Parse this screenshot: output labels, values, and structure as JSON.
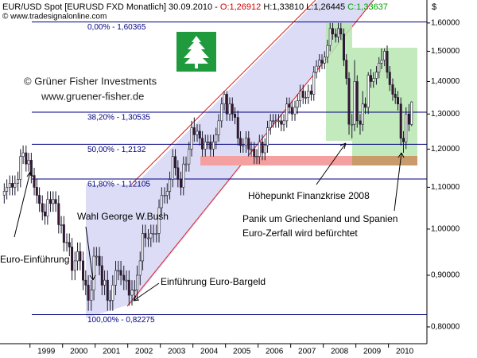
{
  "chart_data": {
    "type": "candlestick",
    "header": {
      "symbol": "EUR/USD Spot [EURUSD FXD Monatlich] 30.09.2010 -",
      "open": "O:1,26912",
      "high": "H:1,33810",
      "low": "L:1,26445",
      "close": "C:1,33637"
    },
    "source": "© www.tradesignalonline.com",
    "currency": "$",
    "copyright": "© Grüner Fisher Investments",
    "website": "www.gruener-fisher.de",
    "annotations": [
      "Höhepunkt Finanzkrise 2008",
      "Panik um Griechenland und Spanien",
      "Euro-Zerfall wird befürchtet",
      "Wahl George W.Bush",
      "Euro-Einführung",
      "Einführung Euro-Bargeld"
    ],
    "up_color": "#ffffff",
    "down_color": "#3b1530",
    "outline_color": "#1a1a2e",
    "log_scale": true,
    "xlim": [
      1998.08,
      2011.18
    ],
    "xticks": [
      {
        "value": 1999,
        "label": "1999"
      },
      {
        "value": 2000,
        "label": "2000"
      },
      {
        "value": 2001,
        "label": "2001"
      },
      {
        "value": 2002,
        "label": "2002"
      },
      {
        "value": 2003,
        "label": "2003"
      },
      {
        "value": 2004,
        "label": "2004"
      },
      {
        "value": 2005,
        "label": "2005"
      },
      {
        "value": 2006,
        "label": "2006"
      },
      {
        "value": 2007,
        "label": "2007"
      },
      {
        "value": 2008,
        "label": "2008"
      },
      {
        "value": 2009,
        "label": "2009"
      },
      {
        "value": 2010,
        "label": "2010"
      }
    ],
    "ylim": [
      0.77,
      1.686
    ],
    "yticks": [
      {
        "value": 0.8,
        "label": "0,80000"
      },
      {
        "value": 0.9,
        "label": "0,90000"
      },
      {
        "value": 1.0,
        "label": "1,00000"
      },
      {
        "value": 1.1,
        "label": "1,10000"
      },
      {
        "value": 1.2,
        "label": "1,20000"
      },
      {
        "value": 1.3,
        "label": "1,30000"
      },
      {
        "value": 1.4,
        "label": "1,40000"
      },
      {
        "value": 1.5,
        "label": "1,50000"
      },
      {
        "value": 1.6,
        "label": "1,60000"
      }
    ],
    "fib_levels": [
      {
        "value": 1.60365,
        "label": "0,00% - 1,60365"
      },
      {
        "value": 1.30535,
        "label": "38,20% - 1,30535"
      },
      {
        "value": 1.2132,
        "label": "50,00% - 1,2132"
      },
      {
        "value": 1.12105,
        "label": "61,80% - 1,12105"
      },
      {
        "value": 0.82275,
        "label": "100,00% - 0,82275"
      }
    ],
    "fib_color": "#000080",
    "x": [
      1998.21,
      1998.29,
      1998.38,
      1998.46,
      1998.54,
      1998.63,
      1998.71,
      1998.79,
      1998.88,
      1998.96,
      1999.04,
      1999.13,
      1999.21,
      1999.29,
      1999.38,
      1999.46,
      1999.54,
      1999.63,
      1999.71,
      1999.79,
      1999.88,
      1999.96,
      2000.04,
      2000.13,
      2000.21,
      2000.29,
      2000.38,
      2000.46,
      2000.54,
      2000.63,
      2000.71,
      2000.79,
      2000.88,
      2000.96,
      2001.04,
      2001.13,
      2001.21,
      2001.29,
      2001.38,
      2001.46,
      2001.54,
      2001.63,
      2001.71,
      2001.79,
      2001.88,
      2001.96,
      2002.04,
      2002.13,
      2002.21,
      2002.29,
      2002.38,
      2002.46,
      2002.54,
      2002.63,
      2002.71,
      2002.79,
      2002.88,
      2002.96,
      2003.04,
      2003.13,
      2003.21,
      2003.29,
      2003.38,
      2003.46,
      2003.54,
      2003.63,
      2003.71,
      2003.79,
      2003.88,
      2003.96,
      2004.04,
      2004.13,
      2004.21,
      2004.29,
      2004.38,
      2004.46,
      2004.54,
      2004.63,
      2004.71,
      2004.79,
      2004.88,
      2004.96,
      2005.04,
      2005.13,
      2005.21,
      2005.29,
      2005.38,
      2005.46,
      2005.54,
      2005.63,
      2005.71,
      2005.79,
      2005.88,
      2005.96,
      2006.04,
      2006.13,
      2006.21,
      2006.29,
      2006.38,
      2006.46,
      2006.54,
      2006.63,
      2006.71,
      2006.79,
      2006.88,
      2006.96,
      2007.04,
      2007.13,
      2007.21,
      2007.29,
      2007.38,
      2007.46,
      2007.54,
      2007.63,
      2007.71,
      2007.79,
      2007.88,
      2007.96,
      2008.04,
      2008.13,
      2008.21,
      2008.29,
      2008.38,
      2008.46,
      2008.54,
      2008.63,
      2008.71,
      2008.79,
      2008.88,
      2008.96,
      2009.04,
      2009.13,
      2009.21,
      2009.29,
      2009.38,
      2009.46,
      2009.54,
      2009.63,
      2009.71,
      2009.79,
      2009.88,
      2009.96,
      2010.04,
      2010.13,
      2010.21,
      2010.29,
      2010.38,
      2010.46,
      2010.54,
      2010.63,
      2010.71
    ],
    "open": [
      1.08,
      1.09,
      1.1,
      1.11,
      1.1,
      1.11,
      1.12,
      1.18,
      1.19,
      1.16,
      1.17,
      1.13,
      1.1,
      1.08,
      1.06,
      1.04,
      1.03,
      1.07,
      1.06,
      1.07,
      1.06,
      1.01,
      1.01,
      0.97,
      0.97,
      0.96,
      0.91,
      0.93,
      0.95,
      0.93,
      0.89,
      0.88,
      0.85,
      0.87,
      0.94,
      0.94,
      0.92,
      0.88,
      0.89,
      0.85,
      0.85,
      0.88,
      0.91,
      0.91,
      0.9,
      0.89,
      0.89,
      0.86,
      0.87,
      0.87,
      0.9,
      0.93,
      0.99,
      0.98,
      0.98,
      0.99,
      0.99,
      0.99,
      1.05,
      1.08,
      1.08,
      1.09,
      1.12,
      1.18,
      1.15,
      1.12,
      1.1,
      1.16,
      1.16,
      1.2,
      1.26,
      1.24,
      1.25,
      1.23,
      1.2,
      1.22,
      1.22,
      1.2,
      1.22,
      1.24,
      1.28,
      1.33,
      1.36,
      1.3,
      1.33,
      1.3,
      1.29,
      1.23,
      1.21,
      1.21,
      1.23,
      1.2,
      1.2,
      1.18,
      1.18,
      1.22,
      1.19,
      1.21,
      1.26,
      1.28,
      1.28,
      1.28,
      1.28,
      1.27,
      1.28,
      1.33,
      1.32,
      1.3,
      1.32,
      1.34,
      1.37,
      1.35,
      1.35,
      1.37,
      1.36,
      1.43,
      1.45,
      1.47,
      1.46,
      1.48,
      1.52,
      1.58,
      1.56,
      1.55,
      1.58,
      1.56,
      1.47,
      1.41,
      1.27,
      1.27,
      1.4,
      1.28,
      1.27,
      1.33,
      1.32,
      1.42,
      1.4,
      1.41,
      1.43,
      1.46,
      1.47,
      1.5,
      1.43,
      1.39,
      1.36,
      1.35,
      1.33,
      1.23,
      1.22,
      1.3,
      1.26912
    ],
    "high": [
      1.11,
      1.12,
      1.13,
      1.13,
      1.13,
      1.14,
      1.2,
      1.21,
      1.21,
      1.19,
      1.19,
      1.15,
      1.12,
      1.1,
      1.08,
      1.06,
      1.09,
      1.09,
      1.09,
      1.09,
      1.08,
      1.03,
      1.03,
      0.99,
      0.99,
      0.98,
      0.95,
      0.97,
      0.97,
      0.95,
      0.91,
      0.9,
      0.89,
      0.96,
      0.96,
      0.96,
      0.94,
      0.91,
      0.91,
      0.87,
      0.9,
      0.93,
      0.93,
      0.93,
      0.92,
      0.91,
      0.91,
      0.89,
      0.89,
      0.92,
      0.95,
      1.01,
      1.01,
      1.0,
      1.01,
      1.01,
      1.01,
      1.07,
      1.1,
      1.1,
      1.11,
      1.14,
      1.2,
      1.2,
      1.17,
      1.14,
      1.18,
      1.18,
      1.22,
      1.28,
      1.29,
      1.27,
      1.27,
      1.25,
      1.24,
      1.24,
      1.24,
      1.24,
      1.26,
      1.3,
      1.35,
      1.37,
      1.37,
      1.35,
      1.35,
      1.32,
      1.31,
      1.25,
      1.23,
      1.25,
      1.25,
      1.22,
      1.22,
      1.2,
      1.24,
      1.24,
      1.23,
      1.28,
      1.3,
      1.3,
      1.3,
      1.3,
      1.3,
      1.3,
      1.35,
      1.35,
      1.34,
      1.34,
      1.36,
      1.39,
      1.39,
      1.37,
      1.39,
      1.39,
      1.45,
      1.47,
      1.49,
      1.49,
      1.5,
      1.54,
      1.6,
      1.6,
      1.58,
      1.6,
      1.6,
      1.58,
      1.49,
      1.43,
      1.3,
      1.47,
      1.42,
      1.3,
      1.37,
      1.35,
      1.43,
      1.44,
      1.43,
      1.45,
      1.48,
      1.51,
      1.51,
      1.52,
      1.45,
      1.41,
      1.38,
      1.37,
      1.35,
      1.25,
      1.32,
      1.33,
      1.3381
    ],
    "low": [
      1.06,
      1.07,
      1.08,
      1.08,
      1.08,
      1.09,
      1.1,
      1.16,
      1.14,
      1.14,
      1.11,
      1.08,
      1.06,
      1.04,
      1.02,
      1.01,
      1.01,
      1.04,
      1.04,
      1.04,
      0.99,
      0.99,
      0.95,
      0.95,
      0.94,
      0.89,
      0.89,
      0.91,
      0.91,
      0.87,
      0.86,
      0.83,
      0.83,
      0.85,
      0.92,
      0.9,
      0.86,
      0.86,
      0.83,
      0.83,
      0.83,
      0.86,
      0.89,
      0.88,
      0.87,
      0.87,
      0.84,
      0.84,
      0.85,
      0.85,
      0.88,
      0.91,
      0.96,
      0.96,
      0.96,
      0.97,
      0.97,
      0.97,
      1.03,
      1.06,
      1.06,
      1.07,
      1.1,
      1.13,
      1.1,
      1.08,
      1.08,
      1.14,
      1.14,
      1.18,
      1.22,
      1.22,
      1.21,
      1.18,
      1.18,
      1.2,
      1.18,
      1.18,
      1.2,
      1.22,
      1.26,
      1.31,
      1.28,
      1.28,
      1.28,
      1.27,
      1.21,
      1.19,
      1.19,
      1.19,
      1.18,
      1.18,
      1.16,
      1.16,
      1.16,
      1.17,
      1.17,
      1.19,
      1.24,
      1.26,
      1.26,
      1.26,
      1.25,
      1.25,
      1.26,
      1.3,
      1.28,
      1.28,
      1.3,
      1.32,
      1.33,
      1.33,
      1.33,
      1.34,
      1.34,
      1.41,
      1.43,
      1.44,
      1.44,
      1.46,
      1.5,
      1.54,
      1.53,
      1.53,
      1.54,
      1.45,
      1.39,
      1.24,
      1.23,
      1.25,
      1.26,
      1.24,
      1.25,
      1.3,
      1.3,
      1.38,
      1.38,
      1.39,
      1.41,
      1.44,
      1.45,
      1.41,
      1.37,
      1.34,
      1.33,
      1.31,
      1.21,
      1.19,
      1.2,
      1.25,
      1.26445
    ],
    "close": [
      1.09,
      1.1,
      1.11,
      1.1,
      1.11,
      1.12,
      1.18,
      1.19,
      1.16,
      1.17,
      1.13,
      1.1,
      1.08,
      1.06,
      1.04,
      1.03,
      1.07,
      1.06,
      1.07,
      1.06,
      1.01,
      1.01,
      0.97,
      0.97,
      0.96,
      0.91,
      0.93,
      0.95,
      0.93,
      0.89,
      0.88,
      0.85,
      0.87,
      0.94,
      0.94,
      0.92,
      0.88,
      0.89,
      0.85,
      0.85,
      0.88,
      0.91,
      0.91,
      0.9,
      0.89,
      0.89,
      0.86,
      0.87,
      0.87,
      0.9,
      0.93,
      0.99,
      0.98,
      0.98,
      0.99,
      0.99,
      0.99,
      1.05,
      1.08,
      1.08,
      1.09,
      1.12,
      1.18,
      1.15,
      1.12,
      1.1,
      1.16,
      1.16,
      1.2,
      1.26,
      1.24,
      1.25,
      1.23,
      1.2,
      1.22,
      1.22,
      1.2,
      1.22,
      1.24,
      1.28,
      1.33,
      1.36,
      1.3,
      1.33,
      1.3,
      1.29,
      1.23,
      1.21,
      1.21,
      1.23,
      1.2,
      1.2,
      1.18,
      1.18,
      1.22,
      1.19,
      1.21,
      1.26,
      1.28,
      1.28,
      1.28,
      1.28,
      1.27,
      1.28,
      1.33,
      1.32,
      1.3,
      1.32,
      1.34,
      1.37,
      1.35,
      1.35,
      1.37,
      1.36,
      1.43,
      1.45,
      1.47,
      1.46,
      1.48,
      1.52,
      1.58,
      1.56,
      1.55,
      1.58,
      1.56,
      1.47,
      1.41,
      1.27,
      1.27,
      1.4,
      1.28,
      1.27,
      1.33,
      1.32,
      1.42,
      1.4,
      1.41,
      1.43,
      1.46,
      1.47,
      1.5,
      1.43,
      1.39,
      1.36,
      1.35,
      1.33,
      1.23,
      1.22,
      1.3,
      1.27,
      1.33637
    ]
  }
}
